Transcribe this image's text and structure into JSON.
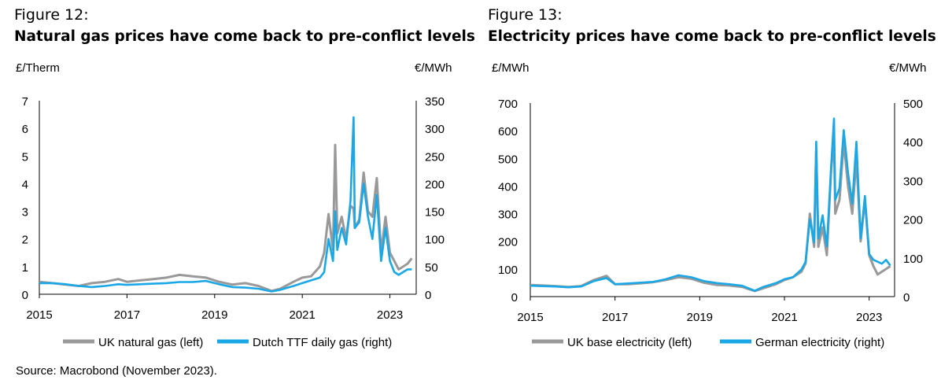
{
  "source": "Source: Macrobond (November 2023).",
  "chart_data": [
    {
      "type": "line",
      "figure_label": "Figure 12:",
      "title": "Natural gas prices have come back to pre-conflict levels",
      "left_unit": "£/Therm",
      "right_unit": "€/MWh",
      "x_ticks": [
        "2015",
        "2017",
        "2019",
        "2021",
        "2023"
      ],
      "xlim": [
        "2015",
        "2023.6"
      ],
      "ylim_left": [
        0,
        7
      ],
      "ylim_right": [
        0,
        350
      ],
      "yticks_left": [
        0,
        1,
        2,
        3,
        4,
        5,
        6,
        7
      ],
      "yticks_right": [
        0,
        50,
        100,
        150,
        200,
        250,
        300,
        350
      ],
      "grid": false,
      "legend_position": "bottom",
      "series": [
        {
          "name": "UK natural gas (left)",
          "axis": "left",
          "color": "#999999",
          "x": [
            2015.0,
            2015.3,
            2015.6,
            2015.9,
            2016.2,
            2016.5,
            2016.8,
            2017.0,
            2017.3,
            2017.6,
            2017.9,
            2018.2,
            2018.5,
            2018.8,
            2019.1,
            2019.4,
            2019.7,
            2020.0,
            2020.3,
            2020.5,
            2020.8,
            2021.0,
            2021.2,
            2021.4,
            2021.5,
            2021.6,
            2021.7,
            2021.75,
            2021.8,
            2021.9,
            2022.0,
            2022.1,
            2022.17,
            2022.2,
            2022.3,
            2022.4,
            2022.5,
            2022.6,
            2022.7,
            2022.8,
            2022.9,
            2023.0,
            2023.1,
            2023.2,
            2023.3,
            2023.4,
            2023.5
          ],
          "y": [
            0.45,
            0.4,
            0.35,
            0.3,
            0.4,
            0.45,
            0.55,
            0.45,
            0.5,
            0.55,
            0.6,
            0.7,
            0.65,
            0.6,
            0.45,
            0.35,
            0.4,
            0.3,
            0.12,
            0.2,
            0.45,
            0.6,
            0.65,
            1.0,
            1.5,
            2.9,
            1.6,
            5.4,
            2.2,
            2.8,
            2.0,
            3.2,
            3.1,
            2.4,
            2.7,
            4.4,
            3.0,
            2.8,
            4.2,
            1.5,
            2.8,
            1.5,
            1.2,
            0.9,
            1.0,
            1.1,
            1.3
          ]
        },
        {
          "name": "Dutch TTF daily gas (right)",
          "axis": "right",
          "color": "#1aa7e6",
          "x": [
            2015.0,
            2015.3,
            2015.6,
            2015.9,
            2016.2,
            2016.5,
            2016.8,
            2017.0,
            2017.3,
            2017.6,
            2017.9,
            2018.2,
            2018.5,
            2018.8,
            2019.1,
            2019.4,
            2019.7,
            2020.0,
            2020.3,
            2020.5,
            2020.8,
            2021.0,
            2021.2,
            2021.4,
            2021.5,
            2021.6,
            2021.7,
            2021.75,
            2021.8,
            2021.9,
            2022.0,
            2022.1,
            2022.17,
            2022.2,
            2022.3,
            2022.4,
            2022.5,
            2022.6,
            2022.7,
            2022.8,
            2022.9,
            2023.0,
            2023.1,
            2023.2,
            2023.3,
            2023.4,
            2023.5
          ],
          "y": [
            20,
            20,
            18,
            15,
            13,
            15,
            18,
            17,
            18,
            19,
            20,
            22,
            22,
            24,
            18,
            13,
            12,
            10,
            5,
            8,
            15,
            20,
            25,
            30,
            40,
            100,
            60,
            150,
            80,
            120,
            90,
            170,
            320,
            120,
            130,
            200,
            140,
            100,
            180,
            60,
            120,
            60,
            40,
            35,
            40,
            45,
            45
          ]
        }
      ]
    },
    {
      "type": "line",
      "figure_label": "Figure 13:",
      "title": "Electricity prices have come back to pre-conflict levels",
      "left_unit": "£/MWh",
      "right_unit": "€/MWh",
      "x_ticks": [
        "2015",
        "2017",
        "2019",
        "2021",
        "2023"
      ],
      "xlim": [
        "2015",
        "2023.6"
      ],
      "ylim_left": [
        0,
        700
      ],
      "ylim_right": [
        0,
        500
      ],
      "yticks_left": [
        0,
        100,
        200,
        300,
        400,
        500,
        600,
        700
      ],
      "yticks_right": [
        0,
        100,
        200,
        300,
        400,
        500
      ],
      "grid": false,
      "legend_position": "bottom",
      "series": [
        {
          "name": "UK base electricity (left)",
          "axis": "left",
          "color": "#999999",
          "x": [
            2015.0,
            2015.3,
            2015.6,
            2015.9,
            2016.2,
            2016.5,
            2016.8,
            2017.0,
            2017.3,
            2017.6,
            2017.9,
            2018.2,
            2018.5,
            2018.8,
            2019.1,
            2019.4,
            2019.7,
            2020.0,
            2020.3,
            2020.5,
            2020.8,
            2021.0,
            2021.2,
            2021.4,
            2021.5,
            2021.6,
            2021.7,
            2021.75,
            2021.8,
            2021.9,
            2022.0,
            2022.1,
            2022.17,
            2022.2,
            2022.3,
            2022.4,
            2022.5,
            2022.6,
            2022.7,
            2022.8,
            2022.9,
            2023.0,
            2023.1,
            2023.2,
            2023.3,
            2023.4,
            2023.5
          ],
          "y": [
            42,
            40,
            38,
            35,
            38,
            60,
            75,
            45,
            45,
            48,
            52,
            60,
            70,
            65,
            50,
            42,
            40,
            35,
            20,
            30,
            45,
            60,
            70,
            90,
            120,
            300,
            180,
            530,
            180,
            250,
            150,
            450,
            580,
            300,
            350,
            560,
            400,
            300,
            500,
            200,
            350,
            150,
            110,
            80,
            90,
            100,
            110
          ]
        },
        {
          "name": "German electricity (right)",
          "axis": "right",
          "color": "#1aa7e6",
          "x": [
            2015.0,
            2015.3,
            2015.6,
            2015.9,
            2016.2,
            2016.5,
            2016.8,
            2017.0,
            2017.3,
            2017.6,
            2017.9,
            2018.2,
            2018.5,
            2018.8,
            2019.1,
            2019.4,
            2019.7,
            2020.0,
            2020.3,
            2020.5,
            2020.8,
            2021.0,
            2021.2,
            2021.4,
            2021.5,
            2021.6,
            2021.7,
            2021.75,
            2021.8,
            2021.9,
            2022.0,
            2022.1,
            2022.17,
            2022.2,
            2022.3,
            2022.4,
            2022.5,
            2022.6,
            2022.7,
            2022.8,
            2022.9,
            2023.0,
            2023.1,
            2023.2,
            2023.3,
            2023.4,
            2023.5
          ],
          "y": [
            28,
            27,
            26,
            24,
            26,
            40,
            48,
            32,
            34,
            36,
            38,
            45,
            55,
            50,
            40,
            35,
            32,
            28,
            15,
            25,
            35,
            45,
            50,
            70,
            90,
            200,
            140,
            400,
            150,
            210,
            130,
            330,
            460,
            250,
            280,
            430,
            320,
            240,
            400,
            150,
            260,
            110,
            95,
            90,
            85,
            95,
            80
          ]
        }
      ]
    }
  ]
}
